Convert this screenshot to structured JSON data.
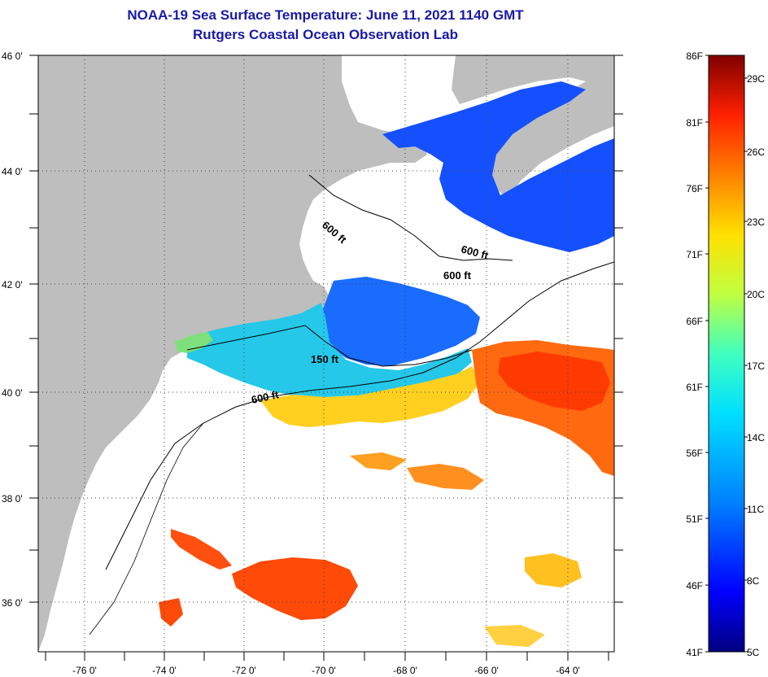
{
  "title": "NOAA-19 Sea Surface Temperature:  June 11, 2021 1140 GMT",
  "subtitle": "Rutgers Coastal Ocean Observation Lab",
  "axes": {
    "lon_labels": [
      "-76 0'",
      "-74 0'",
      "-72 0'",
      "-70 0'",
      "-68 0'",
      "-66 0'",
      "-64 0'"
    ],
    "lat_labels": [
      "46 0'",
      "44 0'",
      "42 0'",
      "40 0'",
      "38 0'",
      "36 0'"
    ]
  },
  "contour_labels": [
    {
      "id": "c1",
      "text": "600 ft"
    },
    {
      "id": "c2",
      "text": "600 ft"
    },
    {
      "id": "c3",
      "text": "600 ft"
    },
    {
      "id": "c4",
      "text": "150 ft"
    },
    {
      "id": "c5",
      "text": "600 ft"
    }
  ],
  "colorbar": {
    "fahrenheit_labels": [
      "86F",
      "81F",
      "76F",
      "71F",
      "66F",
      "61F",
      "56F",
      "51F",
      "46F",
      "41F"
    ],
    "celsius_labels": [
      "29C",
      "26C",
      "23C",
      "20C",
      "17C",
      "14C",
      "11C",
      "8C",
      "5C"
    ],
    "colors": [
      "#00007f",
      "#0000ff",
      "#0080ff",
      "#00e0ff",
      "#40ffc0",
      "#c0ff40",
      "#ffe000",
      "#ff8000",
      "#ff2000",
      "#800000"
    ]
  },
  "colors": {
    "land": "#bebebe",
    "cloud": "#ffffff",
    "title": "#1a1aa6"
  }
}
